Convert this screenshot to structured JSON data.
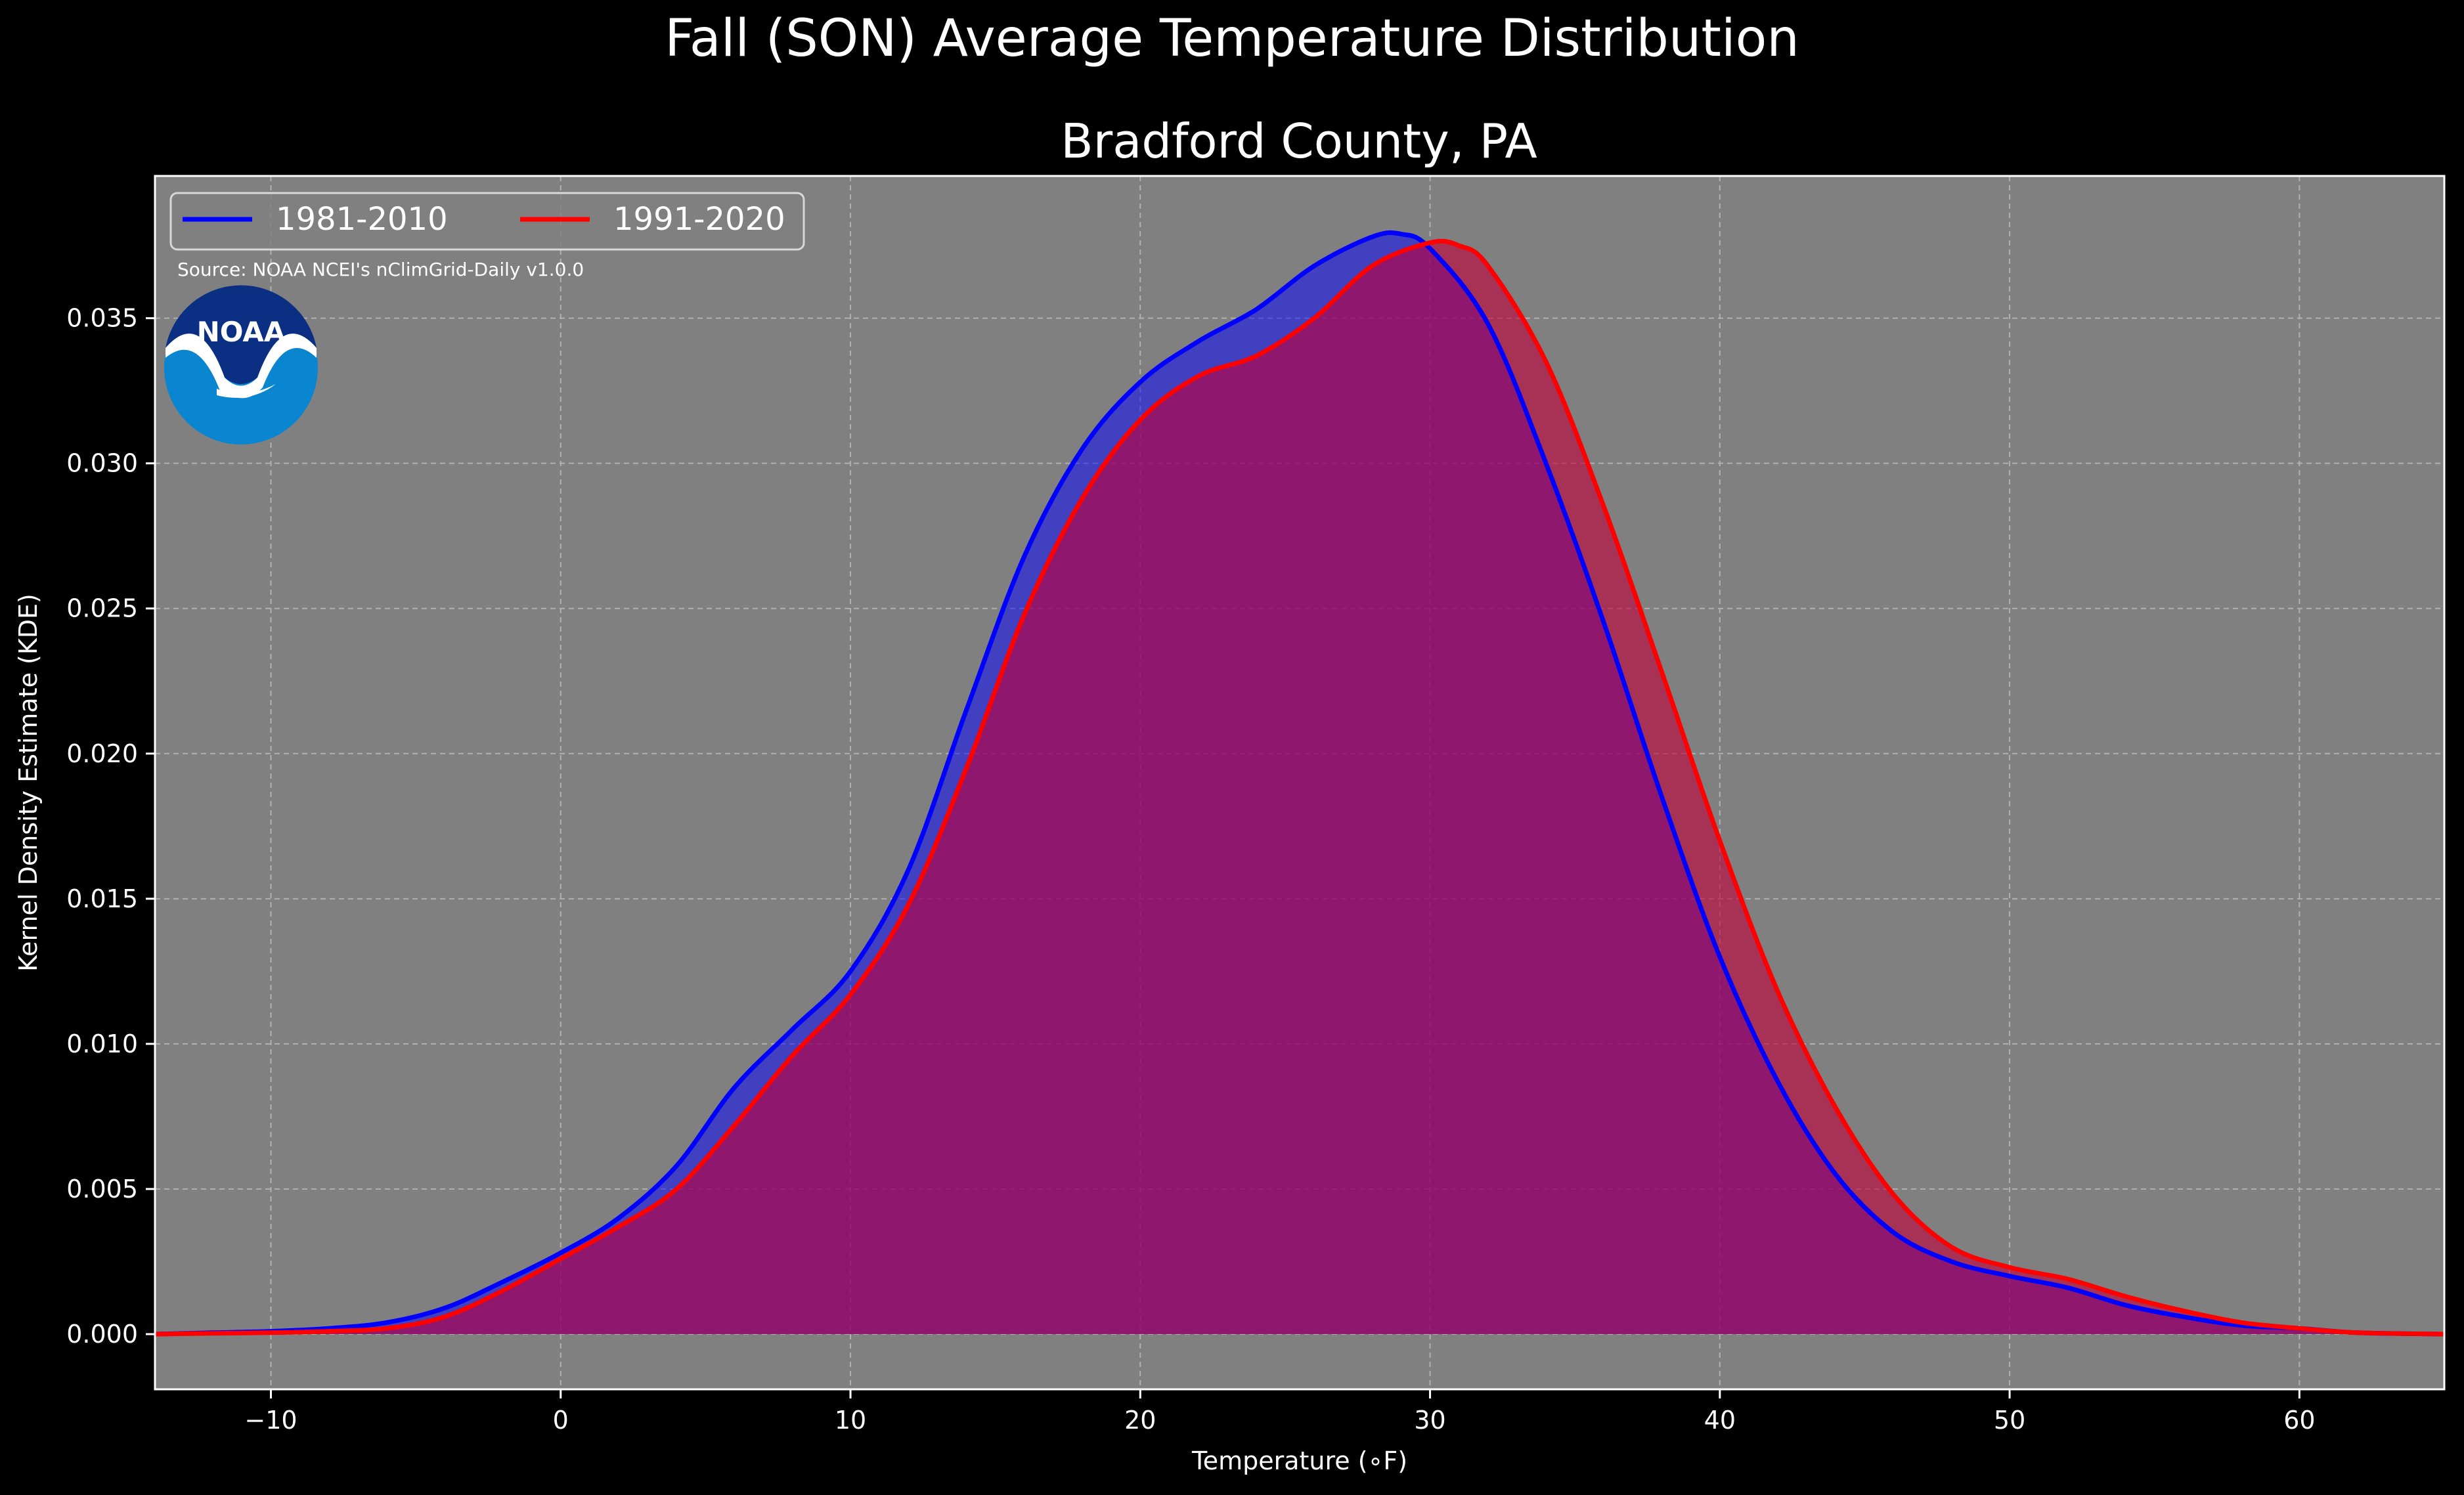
{
  "chart_data": {
    "type": "area",
    "title": "Fall (SON) Average Temperature Distribution",
    "subtitle": "Bradford County, PA",
    "xlabel": "Temperature (∘F)",
    "ylabel": "Kernel Density Estimate (KDE)",
    "xlim": [
      -14,
      65
    ],
    "ylim": [
      -0.0019,
      0.0399
    ],
    "xticks": [
      -10,
      0,
      10,
      20,
      30,
      40,
      50,
      60
    ],
    "xtick_labels": [
      "−10",
      "0",
      "10",
      "20",
      "30",
      "40",
      "50",
      "60"
    ],
    "yticks": [
      0.0,
      0.005,
      0.01,
      0.015,
      0.02,
      0.025,
      0.03,
      0.035
    ],
    "ytick_labels": [
      "0.000",
      "0.005",
      "0.010",
      "0.015",
      "0.020",
      "0.025",
      "0.030",
      "0.035"
    ],
    "grid": true,
    "legend_position": "top-left",
    "source_note": "Source: NOAA NCEI's nClimGrid-Daily v1.0.0",
    "logo_text": "NOAA",
    "series": [
      {
        "name": "1981-2010",
        "color": "#0000ff",
        "fill_color": "#0000ff",
        "x": [
          -14,
          -12,
          -10,
          -8,
          -6,
          -4,
          -2,
          0,
          2,
          4,
          6,
          8,
          10,
          12,
          14,
          16,
          18,
          20,
          22,
          24,
          26,
          28,
          29,
          30,
          32,
          34,
          36,
          38,
          40,
          42,
          44,
          46,
          48,
          50,
          52,
          54,
          56,
          58,
          60,
          62,
          65
        ],
        "y": [
          0.0,
          5e-05,
          0.0001,
          0.0002,
          0.0004,
          0.0009,
          0.0018,
          0.0028,
          0.004,
          0.0058,
          0.0085,
          0.0105,
          0.0125,
          0.016,
          0.0215,
          0.0268,
          0.0305,
          0.0328,
          0.0342,
          0.0353,
          0.0368,
          0.0378,
          0.0379,
          0.0374,
          0.0348,
          0.03,
          0.0245,
          0.0185,
          0.013,
          0.0087,
          0.0055,
          0.0035,
          0.0025,
          0.002,
          0.0016,
          0.001,
          0.0006,
          0.0003,
          0.0002,
          5e-05,
          0.0
        ]
      },
      {
        "name": "1991-2020",
        "color": "#ff0000",
        "fill_color": "#c0003b",
        "x": [
          -14,
          -12,
          -10,
          -8,
          -6,
          -4,
          -2,
          0,
          2,
          4,
          6,
          8,
          10,
          12,
          14,
          16,
          18,
          20,
          22,
          24,
          26,
          28,
          30,
          31,
          32,
          34,
          36,
          38,
          40,
          42,
          44,
          46,
          48,
          50,
          52,
          54,
          56,
          58,
          60,
          62,
          65
        ],
        "y": [
          0.0,
          3e-05,
          5e-05,
          0.0001,
          0.0002,
          0.0006,
          0.0015,
          0.0026,
          0.0037,
          0.005,
          0.0072,
          0.0096,
          0.0117,
          0.0148,
          0.0195,
          0.0248,
          0.0288,
          0.0315,
          0.033,
          0.0337,
          0.035,
          0.0368,
          0.0376,
          0.0375,
          0.0368,
          0.0335,
          0.0285,
          0.0228,
          0.017,
          0.0118,
          0.0078,
          0.0048,
          0.003,
          0.0023,
          0.0019,
          0.0013,
          0.0008,
          0.0004,
          0.0002,
          5e-05,
          0.0
        ]
      }
    ]
  }
}
